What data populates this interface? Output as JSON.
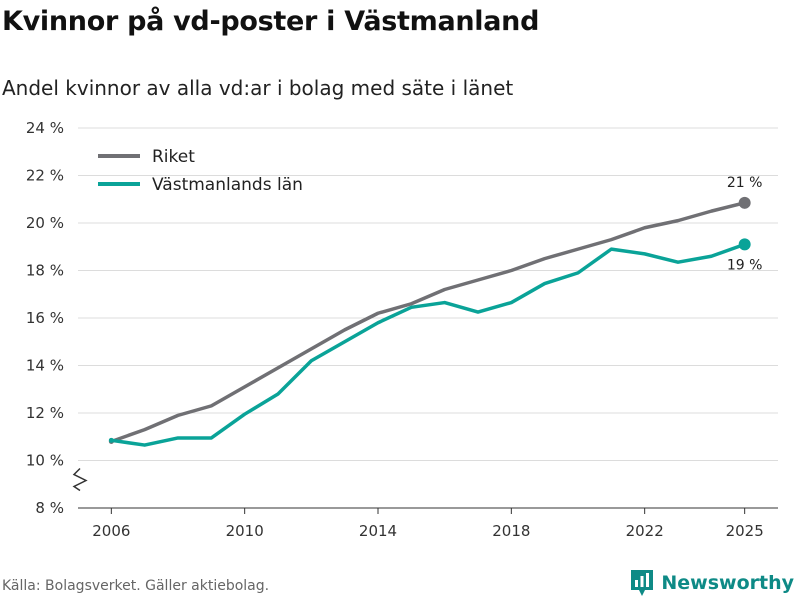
{
  "header": {
    "title": "Kvinnor på vd-poster i Västmanland",
    "subtitle": "Andel kvinnor av alla vd:ar i bolag med säte i länet"
  },
  "footer": {
    "source": "Källa: Bolagsverket. Gäller aktiebolag.",
    "brand": "Newsworthy",
    "brand_icon": "bar-chart-logo-icon"
  },
  "colors": {
    "riket": "#707074",
    "vastmanland": "#0aa398",
    "grid": "#dcdcdc",
    "brand": "#0e8a86"
  },
  "chart_data": {
    "type": "line",
    "title": "Kvinnor på vd-poster i Västmanland",
    "subtitle": "Andel kvinnor av alla vd:ar i bolag med säte i länet",
    "xlabel": "",
    "ylabel": "",
    "x": [
      2006,
      2007,
      2008,
      2009,
      2010,
      2011,
      2012,
      2013,
      2014,
      2015,
      2016,
      2017,
      2018,
      2019,
      2020,
      2021,
      2022,
      2023,
      2024,
      2025
    ],
    "x_ticks": [
      2006,
      2010,
      2014,
      2018,
      2022,
      2025
    ],
    "y_ticks": [
      8,
      10,
      12,
      14,
      16,
      18,
      20,
      22,
      24
    ],
    "y_tick_suffix": " %",
    "ylim": [
      8,
      24
    ],
    "xlim": [
      2005,
      2026
    ],
    "grid": true,
    "y_axis_break": true,
    "legend_position": "top-left",
    "series": [
      {
        "name": "Riket",
        "color": "#707074",
        "values": [
          10.8,
          11.3,
          11.9,
          12.3,
          13.1,
          13.9,
          14.7,
          15.5,
          16.2,
          16.6,
          17.2,
          17.6,
          18.0,
          18.5,
          18.9,
          19.3,
          19.8,
          20.1,
          20.5,
          20.85
        ],
        "end_label": "21 %"
      },
      {
        "name": "Västmanlands län",
        "color": "#0aa398",
        "values": [
          10.85,
          10.65,
          10.95,
          10.95,
          11.95,
          12.8,
          14.2,
          15.0,
          15.8,
          16.45,
          16.65,
          16.25,
          16.65,
          17.45,
          17.9,
          18.9,
          18.7,
          18.35,
          18.6,
          19.1
        ],
        "end_label": "19 %"
      }
    ]
  }
}
